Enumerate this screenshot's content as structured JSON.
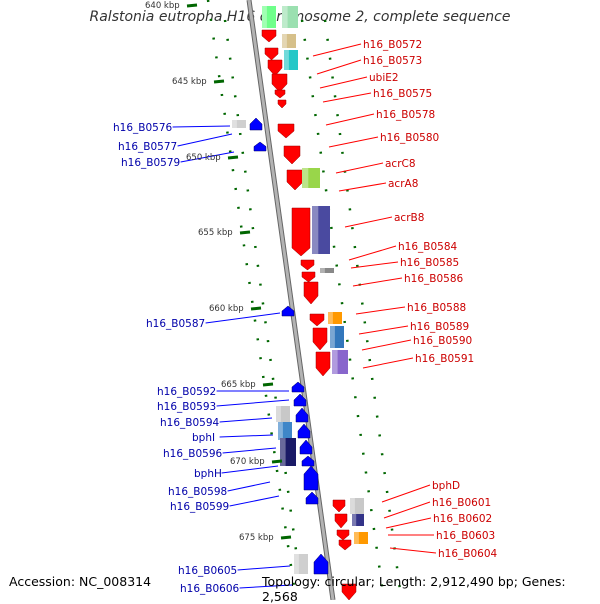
{
  "title": "Ralstonia eutropha H16 chromosome 2, complete sequence",
  "footer": {
    "accession": "Accession: NC_008314",
    "summary": "Topology: circular; Length: 2,912,490 bp; Genes: 2,568"
  },
  "colors": {
    "forward": "#ff0000",
    "reverse": "#0000ff",
    "forward_label": "#cc0000",
    "reverse_label": "#0000aa",
    "backbone": "#999999",
    "tick": "#006600"
  },
  "scale_labels": [
    "640 kbp",
    "645 kbp",
    "650 kbp",
    "655 kbp",
    "660 kbp",
    "665 kbp",
    "670 kbp",
    "675 kbp"
  ],
  "forward_genes": [
    "h16_B0572",
    "h16_B0573",
    "ubiE2",
    "h16_B0575",
    "h16_B0578",
    "h16_B0580",
    "acrC8",
    "acrA8",
    "acrB8",
    "h16_B0584",
    "h16_B0585",
    "h16_B0586",
    "h16_B0588",
    "h16_B0589",
    "h16_B0590",
    "h16_B0591",
    "bphD",
    "h16_B0601",
    "h16_B0602",
    "h16_B0603",
    "h16_B0604"
  ],
  "reverse_genes": [
    "h16_B0576",
    "h16_B0577",
    "h16_B0579",
    "h16_B0587",
    "h16_B0592",
    "h16_B0593",
    "h16_B0594",
    "bphI",
    "h16_B0596",
    "bphH",
    "h16_B0598",
    "h16_B0599",
    "h16_B0605",
    "h16_B0606"
  ]
}
